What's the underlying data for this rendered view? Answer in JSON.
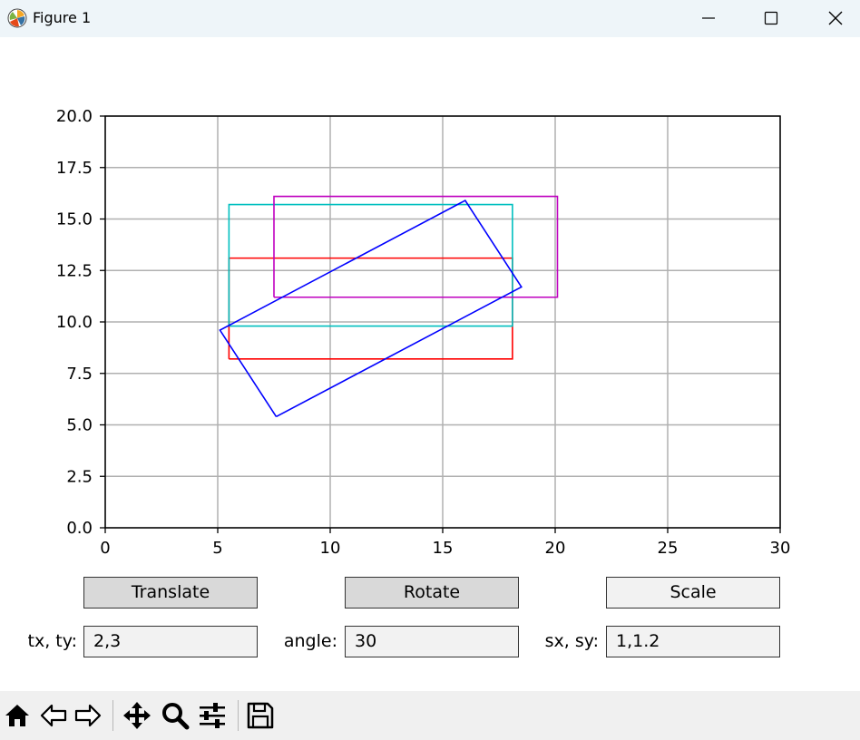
{
  "window": {
    "title": "Figure 1"
  },
  "icons": {
    "app": "matplotlib-logo-icon",
    "minimize": "minimize-icon",
    "maximize": "maximize-icon",
    "close": "close-icon",
    "home": "home-icon",
    "back": "back-arrow-icon",
    "forward": "forward-arrow-icon",
    "pan": "pan-move-icon",
    "zoom": "zoom-magnifier-icon",
    "configure": "configure-subplots-icon",
    "save": "save-floppy-icon"
  },
  "chart_data": {
    "type": "line",
    "xlim": [
      0,
      30
    ],
    "ylim": [
      0,
      20
    ],
    "xticks": [
      0,
      5,
      10,
      15,
      20,
      25,
      30
    ],
    "yticks": [
      0,
      2.5,
      5,
      7.5,
      10,
      12.5,
      15,
      17.5,
      20
    ],
    "xtick_labels": [
      "0",
      "5",
      "10",
      "15",
      "20",
      "25",
      "30"
    ],
    "ytick_labels": [
      "0.0",
      "2.5",
      "5.0",
      "7.5",
      "10.0",
      "12.5",
      "15.0",
      "17.5",
      "20.0"
    ],
    "grid": true,
    "series": [
      {
        "color": "#ff0000",
        "x": [
          5.5,
          18.1,
          18.1,
          5.5,
          5.5
        ],
        "y": [
          8.2,
          8.2,
          13.1,
          13.1,
          8.2
        ]
      },
      {
        "color": "#00bfbf",
        "x": [
          5.5,
          18.1,
          18.1,
          5.5,
          5.5
        ],
        "y": [
          9.8,
          9.8,
          15.7,
          15.7,
          9.8
        ]
      },
      {
        "color": "#bf00bf",
        "x": [
          7.5,
          20.1,
          20.1,
          7.5,
          7.5
        ],
        "y": [
          11.2,
          11.2,
          16.1,
          16.1,
          11.2
        ]
      },
      {
        "color": "#0000ff",
        "x": [
          7.6,
          18.5,
          16.0,
          5.1,
          7.6
        ],
        "y": [
          5.4,
          11.7,
          15.9,
          9.6,
          5.4
        ]
      }
    ]
  },
  "controls": {
    "translate_label": "Translate",
    "rotate_label": "Rotate",
    "scale_label": "Scale",
    "tx_label": "tx, ty:",
    "tx_value": "2,3",
    "angle_label": "angle:",
    "angle_value": "30",
    "sx_label": "sx, sy:",
    "sx_value": "1,1.2"
  }
}
